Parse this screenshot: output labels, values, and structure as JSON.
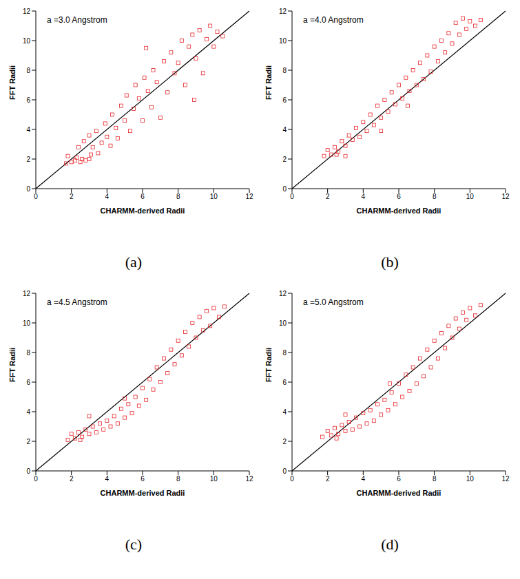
{
  "chart_data": [
    {
      "type": "scatter",
      "panel_label": "(a)",
      "annotation": "a =3.0 Angstrom",
      "x_label": "CHARMM-derived Radii",
      "y_label": "FFT Radii",
      "xlim": [
        0,
        12
      ],
      "ylim": [
        0,
        12
      ],
      "xticks": [
        0,
        2,
        4,
        6,
        8,
        10,
        12
      ],
      "yticks": [
        0,
        2,
        4,
        6,
        8,
        10,
        12
      ],
      "line": {
        "x": [
          0,
          12
        ],
        "y": [
          0,
          12
        ],
        "color": "#000000"
      },
      "series": [
        {
          "color": "#e8262b",
          "marker": "square",
          "x": [
            1.7,
            1.8,
            2.0,
            2.2,
            2.3,
            2.5,
            2.6,
            2.8,
            3.0,
            3.1,
            2.4,
            2.7,
            3.0,
            3.2,
            3.4,
            3.5,
            3.7,
            3.9,
            4.0,
            4.2,
            4.3,
            4.5,
            4.6,
            4.8,
            5.0,
            5.1,
            5.3,
            5.5,
            5.6,
            5.8,
            6.0,
            6.1,
            6.3,
            6.5,
            6.6,
            6.8,
            7.0,
            7.2,
            7.4,
            7.6,
            7.8,
            8.0,
            8.2,
            8.4,
            8.6,
            8.8,
            9.0,
            9.2,
            9.4,
            9.6,
            9.8,
            10.0,
            10.2,
            10.5,
            8.9,
            6.2
          ],
          "y": [
            1.7,
            2.2,
            1.8,
            1.9,
            2.1,
            1.8,
            2.0,
            1.9,
            2.0,
            2.3,
            2.8,
            3.2,
            3.6,
            2.8,
            3.9,
            2.4,
            3.1,
            4.4,
            3.5,
            2.9,
            5.0,
            4.1,
            3.4,
            5.6,
            4.6,
            6.3,
            3.9,
            5.4,
            7.0,
            6.1,
            4.6,
            7.5,
            6.6,
            5.5,
            8.0,
            7.2,
            4.8,
            8.6,
            6.5,
            9.2,
            7.8,
            8.5,
            10.0,
            7.0,
            9.6,
            10.4,
            8.8,
            10.7,
            7.8,
            10.1,
            11.0,
            9.6,
            10.6,
            10.3,
            6.0,
            9.5
          ]
        }
      ]
    },
    {
      "type": "scatter",
      "panel_label": "(b)",
      "annotation": "a =4.0 Angstrom",
      "x_label": "CHARMM-derived Radii",
      "y_label": "FFT Radii",
      "xlim": [
        0,
        12
      ],
      "ylim": [
        0,
        12
      ],
      "xticks": [
        0,
        2,
        4,
        6,
        8,
        10,
        12
      ],
      "yticks": [
        0,
        2,
        4,
        6,
        8,
        10,
        12
      ],
      "line": {
        "x": [
          0,
          12
        ],
        "y": [
          0,
          12
        ],
        "color": "#000000"
      },
      "series": [
        {
          "color": "#e8262b",
          "marker": "square",
          "x": [
            1.8,
            2.0,
            2.2,
            2.4,
            2.6,
            2.8,
            3.0,
            3.2,
            3.4,
            3.6,
            3.8,
            4.0,
            4.2,
            4.4,
            4.6,
            4.8,
            5.0,
            5.2,
            5.4,
            5.6,
            5.8,
            6.0,
            6.2,
            6.4,
            6.6,
            6.8,
            7.0,
            7.2,
            7.4,
            7.6,
            7.8,
            8.0,
            8.2,
            8.4,
            8.6,
            8.8,
            9.0,
            9.2,
            9.4,
            9.6,
            9.8,
            10.0,
            10.3,
            10.6,
            3.0,
            5.0,
            6.5,
            2.5
          ],
          "y": [
            2.2,
            2.6,
            2.3,
            2.8,
            2.5,
            3.2,
            2.9,
            3.6,
            3.3,
            4.1,
            3.5,
            4.5,
            3.9,
            5.0,
            4.3,
            5.6,
            4.8,
            6.0,
            5.2,
            6.5,
            5.7,
            7.0,
            6.1,
            7.5,
            6.6,
            8.0,
            7.0,
            8.5,
            7.4,
            9.0,
            7.9,
            9.6,
            8.6,
            10.0,
            9.2,
            10.5,
            9.8,
            11.2,
            10.4,
            11.5,
            10.8,
            11.3,
            11.0,
            11.4,
            2.2,
            3.9,
            5.6,
            2.3
          ]
        }
      ]
    },
    {
      "type": "scatter",
      "panel_label": "(c)",
      "annotation": "a =4.5 Angstrom",
      "x_label": "CHARMM-derived Radii",
      "y_label": "FFT Radii",
      "xlim": [
        0,
        12
      ],
      "ylim": [
        0,
        12
      ],
      "xticks": [
        0,
        2,
        4,
        6,
        8,
        10,
        12
      ],
      "yticks": [
        0,
        2,
        4,
        6,
        8,
        10,
        12
      ],
      "line": {
        "x": [
          0,
          12
        ],
        "y": [
          0,
          12
        ],
        "color": "#000000"
      },
      "series": [
        {
          "color": "#e8262b",
          "marker": "square",
          "x": [
            1.8,
            2.0,
            2.2,
            2.4,
            2.6,
            2.8,
            3.0,
            3.2,
            3.4,
            3.6,
            3.8,
            4.0,
            4.2,
            4.4,
            4.6,
            4.8,
            5.0,
            5.2,
            5.4,
            5.6,
            5.8,
            6.0,
            6.2,
            6.4,
            6.6,
            6.8,
            7.0,
            7.2,
            7.4,
            7.6,
            7.8,
            8.0,
            8.2,
            8.4,
            8.6,
            8.8,
            9.0,
            9.2,
            9.4,
            9.6,
            9.8,
            10.0,
            10.3,
            10.6,
            3.0,
            5.0,
            2.5
          ],
          "y": [
            2.1,
            2.5,
            2.2,
            2.6,
            2.3,
            2.8,
            2.5,
            3.0,
            2.6,
            3.2,
            2.8,
            3.4,
            3.0,
            3.7,
            3.2,
            4.2,
            3.6,
            4.5,
            3.9,
            5.0,
            4.4,
            5.6,
            4.8,
            6.2,
            5.5,
            7.0,
            6.0,
            7.6,
            6.6,
            8.2,
            7.2,
            8.8,
            7.8,
            9.4,
            8.4,
            10.0,
            9.0,
            10.4,
            9.5,
            10.8,
            9.8,
            11.0,
            10.4,
            11.1,
            3.7,
            4.9,
            2.1
          ]
        }
      ]
    },
    {
      "type": "scatter",
      "panel_label": "(d)",
      "annotation": "a =5.0 Angstrom",
      "x_label": "CHARMM-derived Radii",
      "y_label": "FFT Radii",
      "xlim": [
        0,
        12
      ],
      "ylim": [
        0,
        12
      ],
      "xticks": [
        0,
        2,
        4,
        6,
        8,
        10,
        12
      ],
      "yticks": [
        0,
        2,
        4,
        6,
        8,
        10,
        12
      ],
      "line": {
        "x": [
          0,
          12
        ],
        "y": [
          0,
          12
        ],
        "color": "#000000"
      },
      "series": [
        {
          "color": "#e8262b",
          "marker": "square",
          "x": [
            1.7,
            2.0,
            2.2,
            2.4,
            2.6,
            2.8,
            3.0,
            3.2,
            3.4,
            3.6,
            3.8,
            4.0,
            4.2,
            4.4,
            4.6,
            4.8,
            5.0,
            5.2,
            5.4,
            5.6,
            5.8,
            6.0,
            6.2,
            6.4,
            6.6,
            6.8,
            7.0,
            7.2,
            7.4,
            7.6,
            7.8,
            8.0,
            8.2,
            8.4,
            8.6,
            8.8,
            9.0,
            9.2,
            9.4,
            9.6,
            9.8,
            10.0,
            10.3,
            10.6,
            3.0,
            5.5,
            2.5
          ],
          "y": [
            2.3,
            2.7,
            2.4,
            2.9,
            2.5,
            3.1,
            2.7,
            3.3,
            2.8,
            3.6,
            3.0,
            3.9,
            3.2,
            4.1,
            3.4,
            4.5,
            3.8,
            4.8,
            4.1,
            5.3,
            4.5,
            5.9,
            5.0,
            6.5,
            5.4,
            7.0,
            5.9,
            7.6,
            6.4,
            8.2,
            7.0,
            8.8,
            7.6,
            9.3,
            8.3,
            9.8,
            9.0,
            10.3,
            9.6,
            10.7,
            10.2,
            11.0,
            10.5,
            11.2,
            3.8,
            5.9,
            2.2
          ]
        }
      ]
    }
  ]
}
